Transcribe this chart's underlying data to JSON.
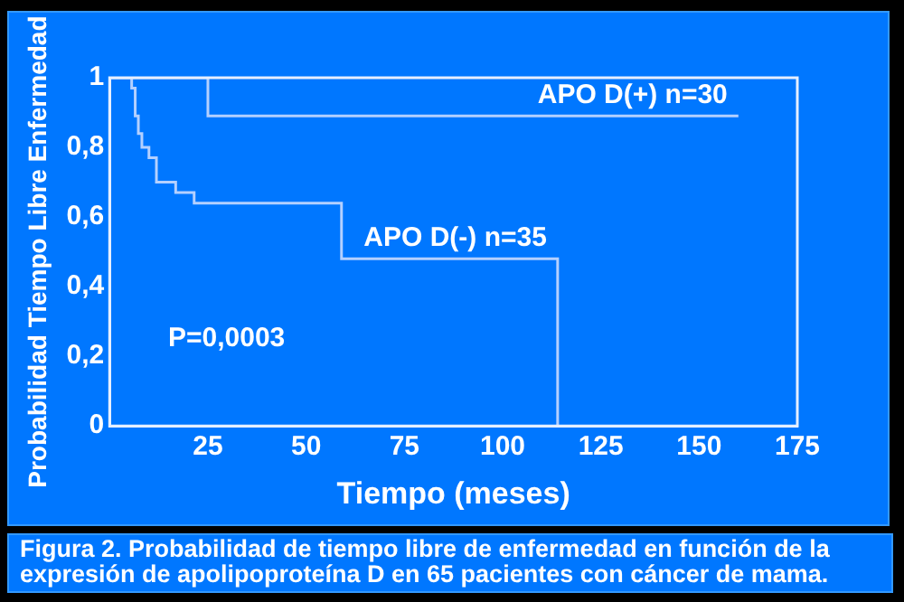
{
  "chart_data": {
    "type": "step",
    "xlabel": "Tiempo (meses)",
    "ylabel": "Probabilidad Tiempo Libre Enfermedad",
    "annotations": [
      "P=0,0003",
      "Figura 2. Probabilidad de tiempo libre de enfermedad en función de la expresión de apolipoproteína D en 65 pacientes con cáncer de mama."
    ],
    "series": [
      {
        "name": "APO D(+) n=30",
        "color": "#b4d0ff",
        "x": [
          0,
          25,
          160
        ],
        "values": [
          1,
          0.89,
          0.89
        ]
      },
      {
        "name": "APO D(-) n=35",
        "color": "#b4d0ff",
        "x": [
          0,
          5.6,
          6.5,
          7.3,
          8.2,
          10,
          11.9,
          16.8,
          21.5,
          59,
          114
        ],
        "values": [
          1,
          0.97,
          0.89,
          0.84,
          0.8,
          0.77,
          0.7,
          0.67,
          0.64,
          0.48,
          0
        ]
      }
    ],
    "xlim": [
      0,
      175
    ],
    "xticks": [
      25,
      50,
      75,
      100,
      125,
      150,
      175
    ],
    "ylim": [
      0,
      1
    ],
    "yticks": [
      0,
      {
        "value": 0.2,
        "label": "0,2"
      },
      {
        "value": 0.4,
        "label": "0,4"
      },
      {
        "value": 0.6,
        "label": "0,6"
      },
      {
        "value": 0.8,
        "label": "0,8"
      },
      1
    ],
    "grid": false,
    "legend": false,
    "marker": "none",
    "line_style": "solid"
  }
}
